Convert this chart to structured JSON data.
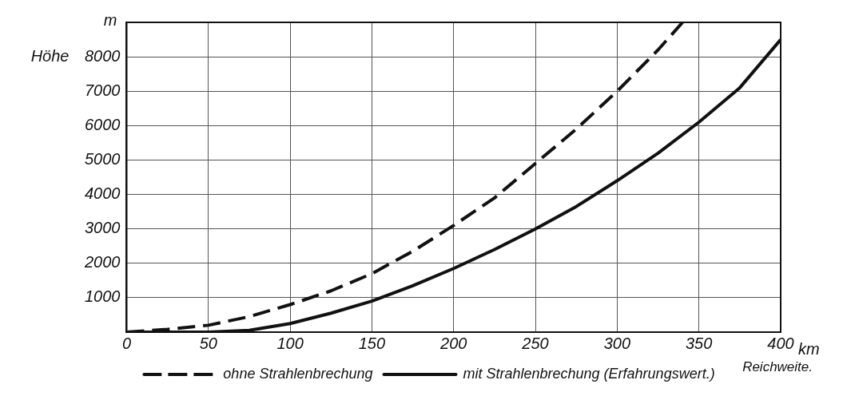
{
  "chart_data": {
    "type": "line",
    "xlabel": "Reichweite.",
    "ylabel": "Höhe",
    "annotations": [
      "m",
      "km"
    ],
    "xlim": [
      0,
      400
    ],
    "xticks": [
      0,
      50,
      100,
      150,
      200,
      250,
      300,
      350,
      400
    ],
    "ylim": [
      0,
      9000
    ],
    "yticks": [
      {
        "value": 0,
        "label": null
      },
      1000,
      2000,
      3000,
      4000,
      5000,
      6000,
      7000,
      8000,
      {
        "value": 9000,
        "label": null
      }
    ],
    "grid": true,
    "legend": "bottom",
    "marker": "none",
    "series": [
      {
        "name": "ohne Strahlenbrechung",
        "color": "#111111",
        "line_style": "dashed",
        "x": [
          0,
          25,
          50,
          75,
          100,
          125,
          150,
          175,
          200,
          225,
          250,
          275,
          300,
          325,
          340
        ],
        "values": [
          0,
          80,
          200,
          450,
          800,
          1200,
          1700,
          2350,
          3100,
          3900,
          4900,
          5900,
          7000,
          8200,
          9000
        ]
      },
      {
        "name": "mit Strahlenbrechung (Erfahrungswert.)",
        "color": "#111111",
        "line_style": "solid",
        "x": [
          0,
          25,
          50,
          75,
          100,
          125,
          150,
          175,
          200,
          225,
          250,
          275,
          300,
          325,
          350,
          375,
          400
        ],
        "values": [
          0,
          0,
          0,
          50,
          250,
          550,
          900,
          1350,
          1850,
          2400,
          3000,
          3650,
          4400,
          5200,
          6100,
          7100,
          8500
        ]
      }
    ]
  }
}
